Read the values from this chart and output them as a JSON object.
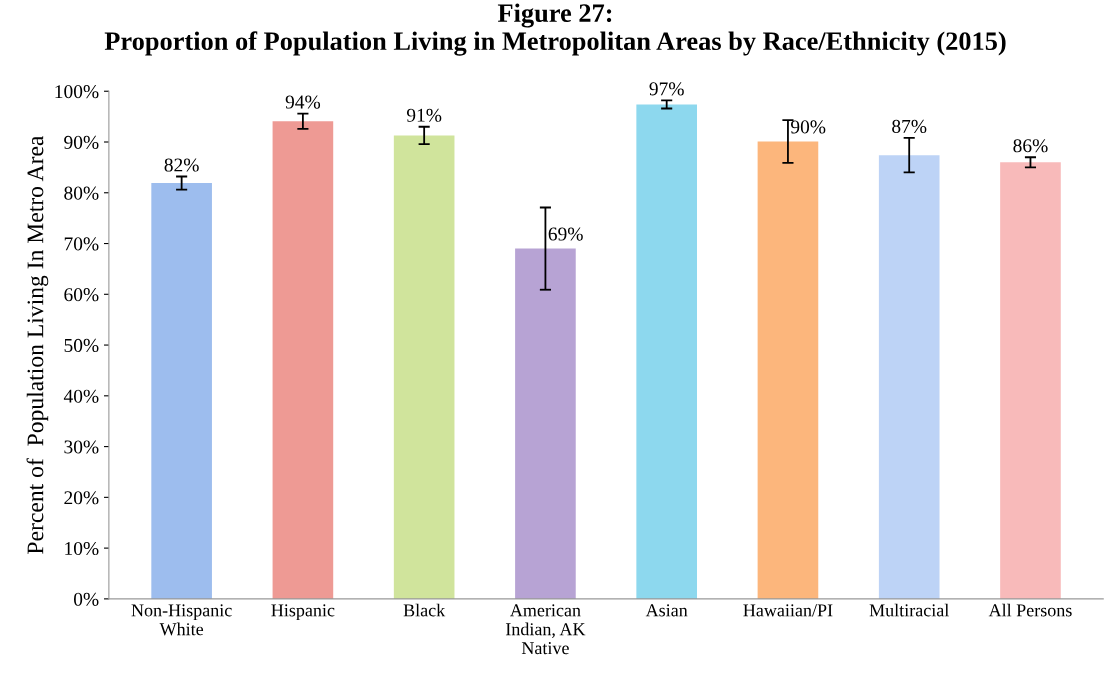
{
  "chart_data": {
    "type": "bar",
    "title": "Figure 27:\nProportion of Population Living in Metropolitan Areas by Race/Ethnicity (2015)",
    "ylabel": "Percent of  Population Living In Metro Area",
    "categories": [
      "Non-Hispanic\nWhite",
      "Hispanic",
      "Black",
      "American\nIndian, AK\nNative",
      "Asian",
      "Hawaiian/PI",
      "Multiracial",
      "All Persons"
    ],
    "values": [
      81.9,
      94.1,
      91.3,
      69.0,
      97.4,
      90.1,
      87.4,
      86.0
    ],
    "errors": [
      1.3,
      1.5,
      1.7,
      8.1,
      0.8,
      4.2,
      3.4,
      1.0
    ],
    "value_labels": [
      "82%",
      "94%",
      "91%",
      "69%",
      "97%",
      "90%",
      "87%",
      "86%"
    ],
    "colors": [
      "#9dbdee",
      "#ee9a94",
      "#d0e49c",
      "#b7a3d4",
      "#8dd8ee",
      "#fcb67c",
      "#bdd3f6",
      "#f8baba"
    ],
    "ylim": [
      0,
      100
    ],
    "yticks": [
      {
        "value": 0,
        "label": "0%"
      },
      {
        "value": 10,
        "label": "10%"
      },
      {
        "value": 20,
        "label": "20%"
      },
      {
        "value": 30,
        "label": "30%"
      },
      {
        "value": 40,
        "label": "40%"
      },
      {
        "value": 50,
        "label": "50%"
      },
      {
        "value": 60,
        "label": "60%"
      },
      {
        "value": 70,
        "label": "70%"
      },
      {
        "value": 80,
        "label": "80%"
      },
      {
        "value": 90,
        "label": "90%"
      },
      {
        "value": 100,
        "label": "100%"
      }
    ],
    "grid": false,
    "legend": false
  }
}
